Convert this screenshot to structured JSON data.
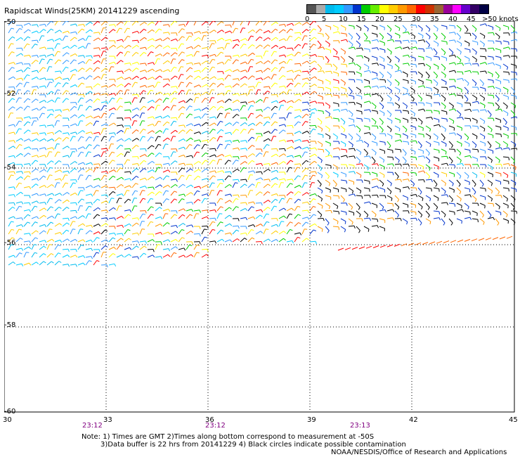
{
  "title": "Rapidscat Winds(25KM) 20141229 ascending",
  "legend": {
    "labels": [
      "0",
      "5",
      "10",
      "15",
      "20",
      "25",
      "30",
      "35",
      "40",
      "45",
      ">50 knots"
    ],
    "colors": [
      "#555555",
      "#aaaaaa",
      "#00bbee",
      "#00ccff",
      "#3399ff",
      "#0033cc",
      "#00cc00",
      "#66ee00",
      "#ffff00",
      "#ffcc00",
      "#ff9900",
      "#ff6600",
      "#ff0000",
      "#cc3300",
      "#996633",
      "#990099",
      "#ff00ff",
      "#6600cc",
      "#330066",
      "#000044"
    ]
  },
  "axes": {
    "lat_labels": [
      "-50",
      "-52",
      "-54",
      "-56",
      "-58",
      "-60"
    ],
    "lon_labels": [
      "30",
      "33",
      "36",
      "39",
      "42",
      "45"
    ]
  },
  "times": [
    "23:12",
    "23:12",
    "23:13"
  ],
  "notes": {
    "line1": "Note: 1) Times are GMT 2)Times along bottom correspond to measurement at -50S",
    "line2": "3)Data buffer is 22 hrs from 20141229 4) Black circles indicate possible contamination",
    "credit": "NOAA/NESDIS/Office of Research and Applications"
  }
}
